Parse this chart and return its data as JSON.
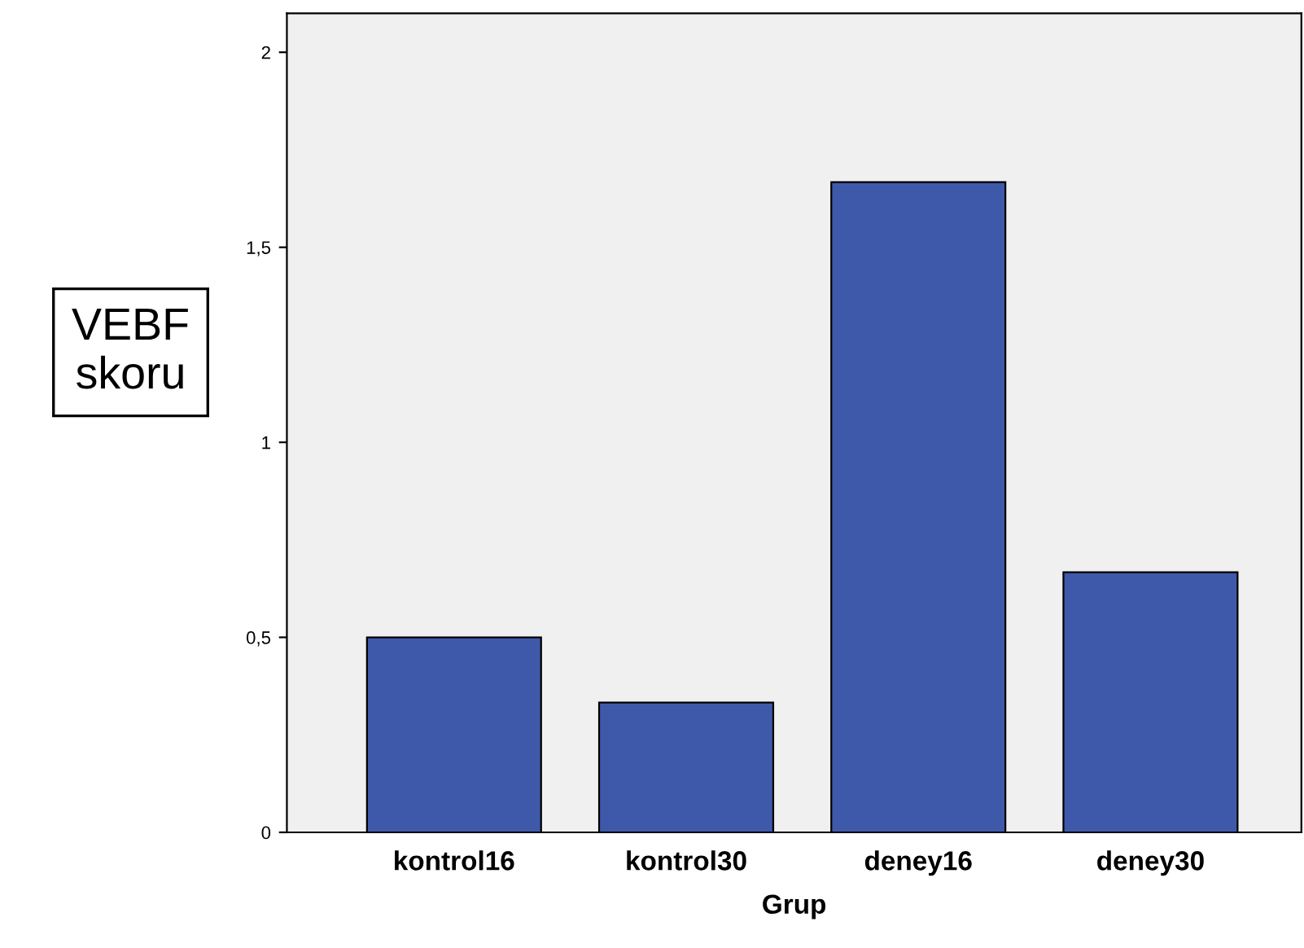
{
  "chart_data": {
    "type": "bar",
    "xlabel": "Grup",
    "ylabel": "VEBF\nskoru",
    "categories": [
      "kontrol16",
      "kontrol30",
      "deney16",
      "deney30"
    ],
    "values": [
      0.5,
      0.333,
      1.667,
      0.667
    ],
    "color": "#3f59aa",
    "ylim": [
      0,
      2.1
    ],
    "yticks": [
      0,
      {
        "value": 0.5,
        "label": "0,5"
      },
      1,
      {
        "value": 1.5,
        "label": "1,5"
      },
      2
    ],
    "grid": false,
    "legend": false
  }
}
